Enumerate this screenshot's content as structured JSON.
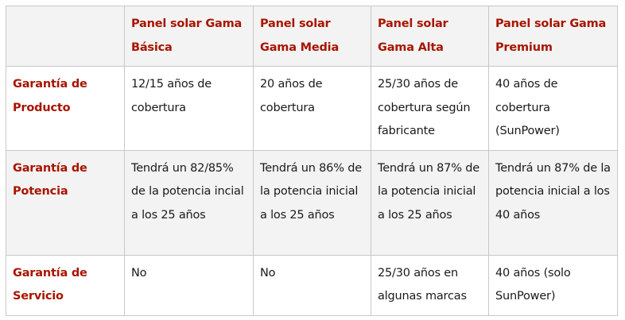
{
  "table": {
    "columns": [
      "",
      "Panel solar Gama Básica",
      "Panel solar Gama Media",
      "Panel solar Gama Alta",
      "Panel solar Gama Premium"
    ],
    "rows": [
      {
        "label": "Garantía de Producto",
        "cells": [
          "12/15 años de cobertura",
          "20 años de cobertura",
          "25/30 años de cobertura según fabricante",
          "40 años de cobertura (SunPower)"
        ]
      },
      {
        "label": "Garantía de Potencia",
        "cells": [
          "Tendrá un 82/85% de la potencia incial a los 25 años",
          "Tendrá un 86% de la potencia inicial a los 25 años",
          "Tendrá un 87% de la potencia inicial a los 25 años",
          "Tendrá un 87% de la potencia inicial a los 40 años"
        ]
      },
      {
        "label": "Garantía de Servicio",
        "cells": [
          "No",
          "No",
          "25/30 años en algunas marcas",
          "40 años (solo SunPower)"
        ]
      }
    ]
  },
  "colors": {
    "header_text": "#a81500",
    "shaded_row": "#f3f3f3",
    "border": "#c8c8c8",
    "body_text": "#1a1a1a"
  }
}
